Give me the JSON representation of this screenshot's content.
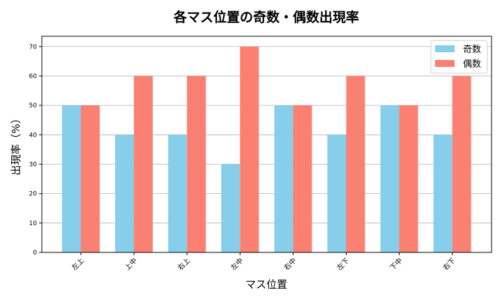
{
  "chart_data": {
    "type": "bar",
    "title": "各マス位置の奇数・偶数出現率",
    "xlabel": "マス位置",
    "ylabel": "出現率（%）",
    "categories": [
      "左上",
      "上中",
      "右上",
      "左中",
      "右中",
      "左下",
      "下中",
      "右下"
    ],
    "series": [
      {
        "name": "奇数",
        "color": "#87CEEB",
        "values": [
          50,
          40,
          40,
          30,
          50,
          40,
          50,
          40
        ]
      },
      {
        "name": "偶数",
        "color": "#FA8072",
        "values": [
          50,
          60,
          60,
          70,
          50,
          60,
          50,
          60
        ]
      }
    ],
    "ylim": [
      0,
      73.5
    ],
    "yticks": [
      0,
      10,
      20,
      30,
      40,
      50,
      60,
      70
    ],
    "grid": "y",
    "legend": "top-right"
  }
}
